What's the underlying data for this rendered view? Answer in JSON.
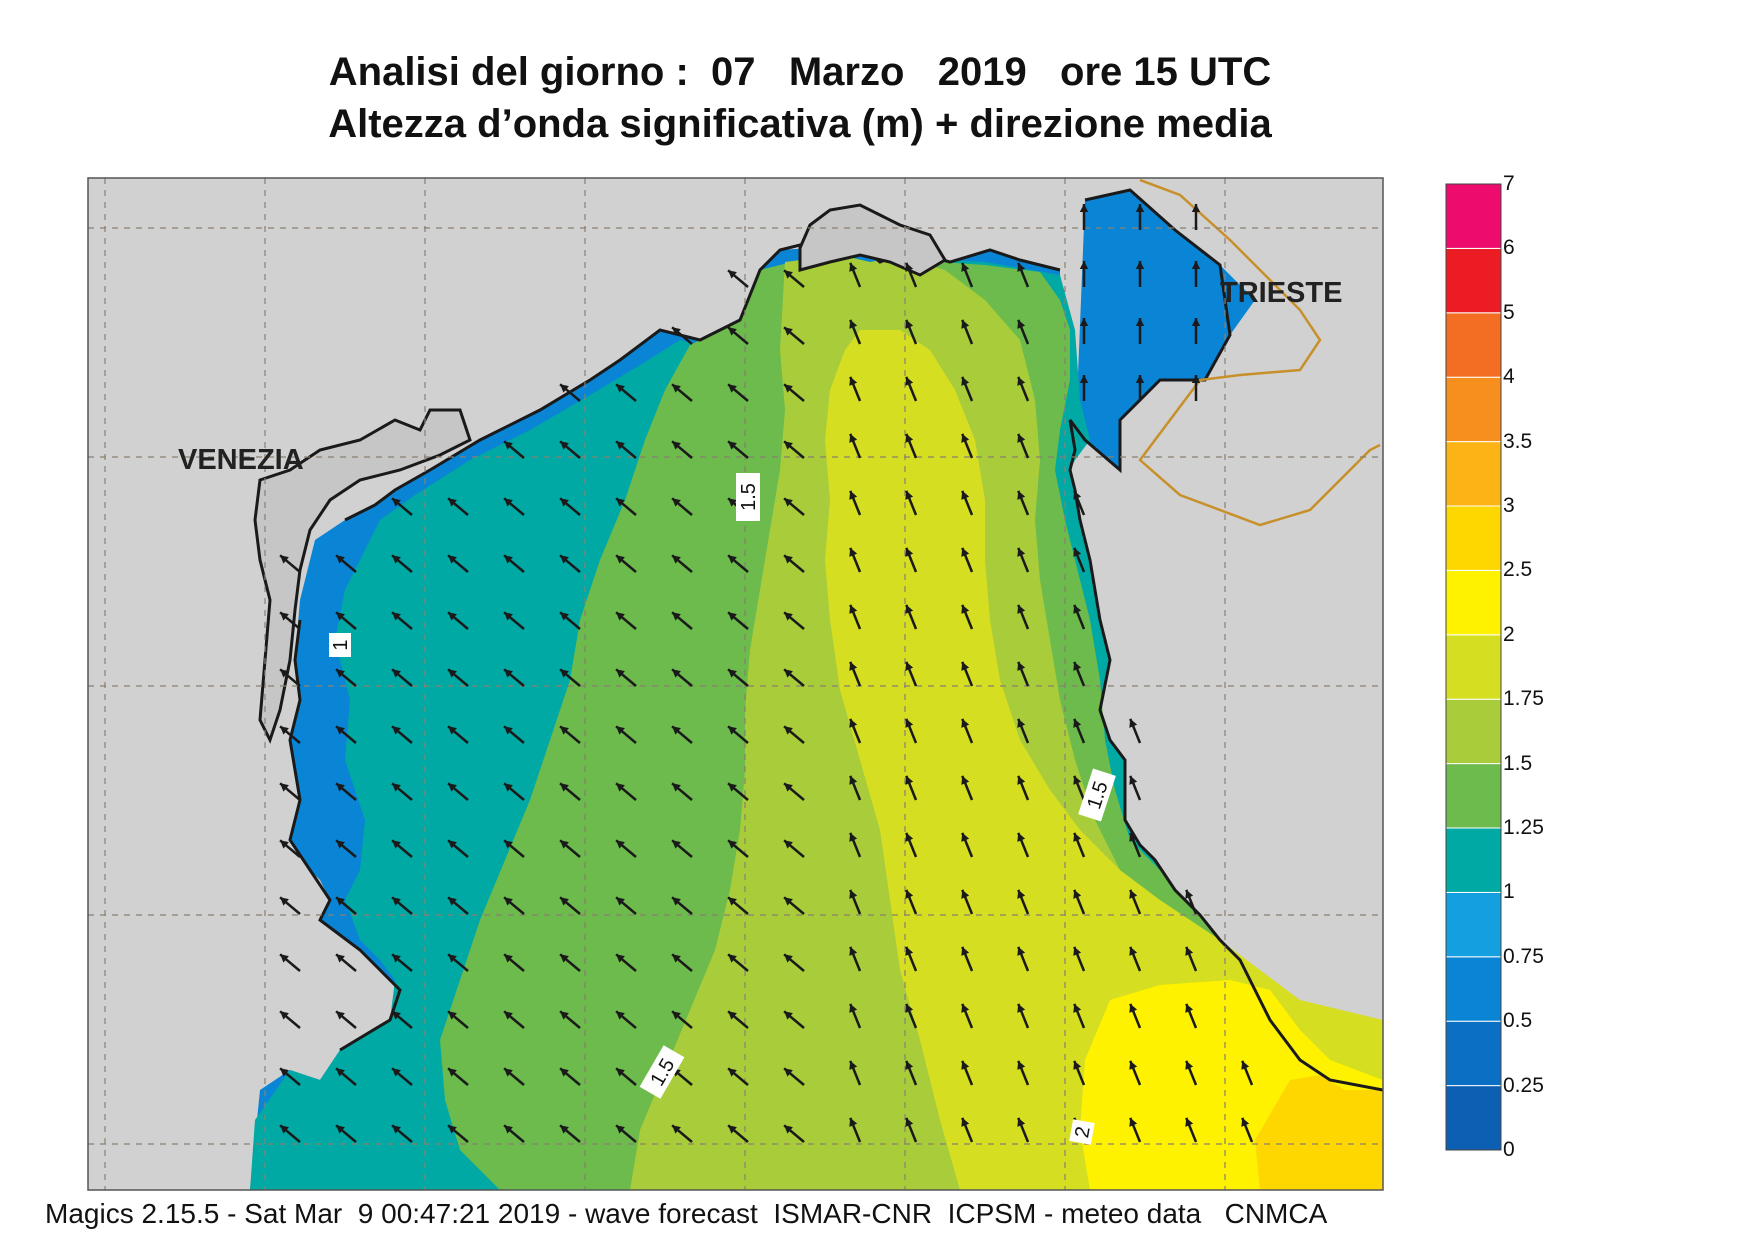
{
  "header": {
    "title_line1": "Analisi del giorno :  07   Marzo   2019   ore 15 UTC",
    "title_line2": "Altezza d’onda significativa (m) + direzione media"
  },
  "map_labels": {
    "venezia": "VENEZIA",
    "trieste": "TRIESTE"
  },
  "contour_labels": [
    "1",
    "1.5",
    "1.5",
    "1.5",
    "2"
  ],
  "colorbar": {
    "labels": [
      "7",
      "6",
      "5",
      "4",
      "3.5",
      "3",
      "2.5",
      "2",
      "1.75",
      "1.5",
      "1.25",
      "1",
      "0.75",
      "0.5",
      "0.25",
      "0"
    ],
    "colors": [
      "#0d5fb3",
      "#0b6fc4",
      "#0a84d4",
      "#139fe0",
      "#00a9a4",
      "#6cbb4c",
      "#a8cc3a",
      "#d6de22",
      "#fff200",
      "#fed700",
      "#fcb316",
      "#f68f1e",
      "#f36e22",
      "#ec1c24",
      "#ed0c6e"
    ]
  },
  "colors": {
    "land": "#d1d1d1",
    "coast": "#1a1a1a",
    "border": "#c8902a",
    "arrow": "#1a1a1a"
  },
  "wave_direction_note_icon": "arrow-icon",
  "footer": {
    "credit": "Magics 2.15.5 - Sat Mar  9 00:47:21 2019 - wave forecast  ISMAR-CNR  ICPSM - meteo data   CNMCA"
  }
}
